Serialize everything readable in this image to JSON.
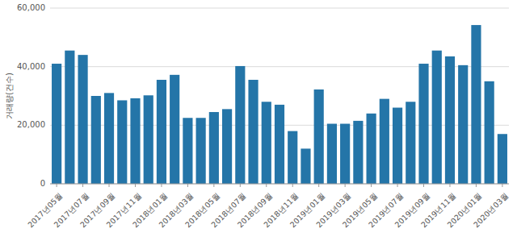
{
  "chart_data": {
    "type": "bar",
    "categories": [
      "2017년05월",
      null,
      "2017년07월",
      null,
      "2017년09월",
      null,
      "2017년11월",
      null,
      "2018년01월",
      null,
      "2018년03월",
      null,
      "2018년05월",
      null,
      "2018년07월",
      null,
      "2018년09월",
      null,
      "2018년11월",
      null,
      "2019년01월",
      null,
      "2019년03월",
      null,
      "2019년05월",
      null,
      "2019년07월",
      null,
      "2019년09월",
      null,
      "2019년11월",
      null,
      "2020년01월",
      null,
      "2020년03월"
    ],
    "values": [
      41000,
      45500,
      44000,
      30000,
      31000,
      28500,
      29200,
      30200,
      35500,
      37200,
      22500,
      22500,
      24500,
      25500,
      40200,
      35500,
      28000,
      27000,
      18000,
      12000,
      32200,
      20500,
      20500,
      21500,
      24000,
      29000,
      26000,
      28000,
      41000,
      45500,
      43500,
      40500,
      54200,
      35000,
      17000
    ],
    "color": "#2475a8",
    "ylabel": "거래량(건수)",
    "ylim": [
      0,
      60000
    ],
    "yticks": [
      0,
      {
        "value": 20000,
        "label": "20,000"
      },
      {
        "value": 40000,
        "label": "40,000"
      },
      {
        "value": 60000,
        "label": "60,000"
      }
    ],
    "grid": true
  }
}
